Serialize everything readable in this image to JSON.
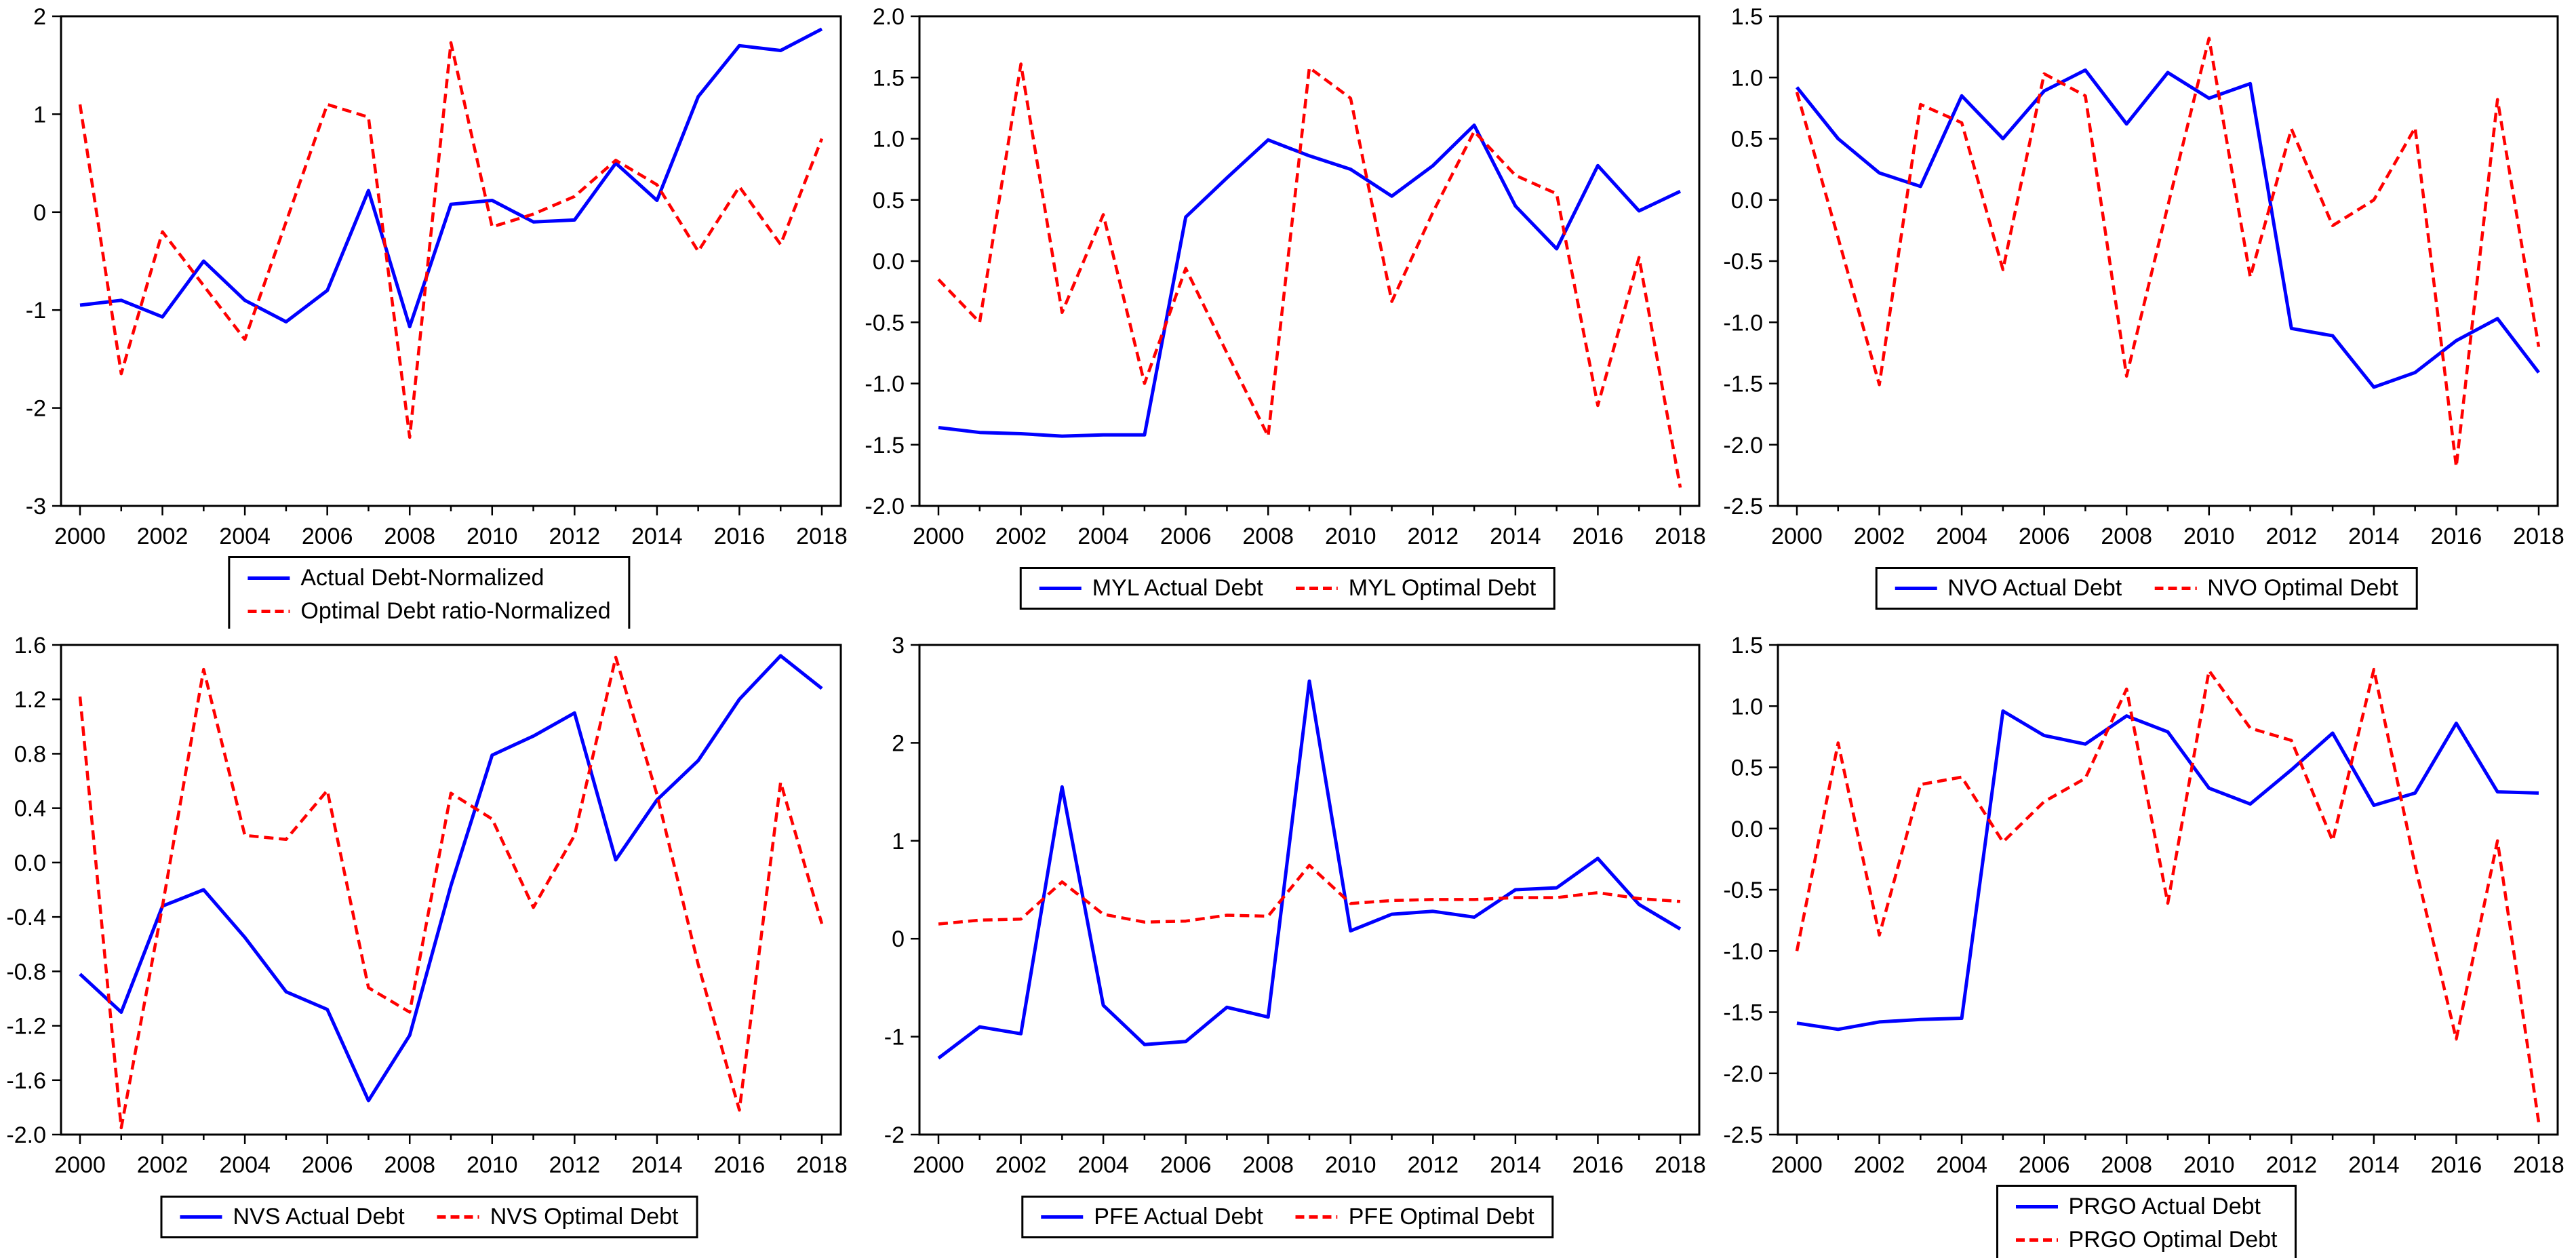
{
  "page": {
    "background": "#ffffff"
  },
  "colors": {
    "actual": "#0000ff",
    "optimal": "#ff0000",
    "axis": "#000000"
  },
  "chart_data": [
    {
      "id": "normalized-debt",
      "type": "line",
      "x": [
        2000,
        2001,
        2002,
        2003,
        2004,
        2005,
        2006,
        2007,
        2008,
        2009,
        2010,
        2011,
        2012,
        2013,
        2014,
        2015,
        2016,
        2017,
        2018
      ],
      "xticks": [
        2000,
        2002,
        2004,
        2006,
        2008,
        2010,
        2012,
        2014,
        2016,
        2018
      ],
      "ylim": [
        -3,
        2
      ],
      "yticks": [
        2,
        1,
        0,
        -1,
        -2,
        -3
      ],
      "ytick_format": "int",
      "grid": "off",
      "legend_layout": "stack",
      "legend_position": "bottom",
      "series": [
        {
          "name": "Actual Debt-Normalized",
          "color": "#0000ff",
          "style": "solid",
          "values": [
            -0.95,
            -0.9,
            -1.07,
            -0.5,
            -0.9,
            -1.12,
            -0.8,
            0.22,
            -1.17,
            0.08,
            0.12,
            -0.1,
            -0.08,
            0.5,
            0.12,
            1.18,
            1.7,
            1.65,
            1.87
          ]
        },
        {
          "name": "Optimal Debt ratio-Normalized",
          "color": "#ff0000",
          "style": "dashed",
          "values": [
            1.1,
            -1.65,
            -0.2,
            -0.75,
            -1.3,
            -0.1,
            1.1,
            0.97,
            -2.3,
            1.73,
            -0.15,
            -0.02,
            0.16,
            0.53,
            0.28,
            -0.4,
            0.26,
            -0.33,
            0.75
          ]
        }
      ]
    },
    {
      "id": "MYL",
      "type": "line",
      "x": [
        2000,
        2001,
        2002,
        2003,
        2004,
        2005,
        2006,
        2007,
        2008,
        2009,
        2010,
        2011,
        2012,
        2013,
        2014,
        2015,
        2016,
        2017,
        2018
      ],
      "xticks": [
        2000,
        2002,
        2004,
        2006,
        2008,
        2010,
        2012,
        2014,
        2016,
        2018
      ],
      "ylim": [
        -2,
        2
      ],
      "yticks": [
        2.0,
        1.5,
        1.0,
        0.5,
        0.0,
        -0.5,
        -1.0,
        -1.5,
        -2.0
      ],
      "ytick_format": "dec1",
      "grid": "off",
      "legend_layout": "row",
      "legend_position": "bottom",
      "series": [
        {
          "name": "MYL Actual Debt",
          "color": "#0000ff",
          "style": "solid",
          "values": [
            -1.36,
            -1.4,
            -1.41,
            -1.43,
            -1.42,
            -1.42,
            0.36,
            0.68,
            0.99,
            0.86,
            0.75,
            0.53,
            0.78,
            1.11,
            0.45,
            0.1,
            0.78,
            0.41,
            0.57
          ]
        },
        {
          "name": "MYL Optimal Debt",
          "color": "#ff0000",
          "style": "dashed",
          "values": [
            -0.15,
            -0.5,
            1.61,
            -0.42,
            0.38,
            -1.0,
            -0.06,
            -0.75,
            -1.43,
            1.58,
            1.33,
            -0.33,
            0.4,
            1.06,
            0.7,
            0.55,
            -1.18,
            0.03,
            -1.85
          ]
        }
      ]
    },
    {
      "id": "NVO",
      "type": "line",
      "x": [
        2000,
        2001,
        2002,
        2003,
        2004,
        2005,
        2006,
        2007,
        2008,
        2009,
        2010,
        2011,
        2012,
        2013,
        2014,
        2015,
        2016,
        2017,
        2018
      ],
      "xticks": [
        2000,
        2002,
        2004,
        2006,
        2008,
        2010,
        2012,
        2014,
        2016,
        2018
      ],
      "ylim": [
        -2.5,
        1.5
      ],
      "yticks": [
        1.5,
        1.0,
        0.5,
        0.0,
        -0.5,
        -1.0,
        -1.5,
        -2.0,
        -2.5
      ],
      "ytick_format": "dec1",
      "grid": "off",
      "legend_layout": "row",
      "legend_position": "bottom",
      "series": [
        {
          "name": "NVO Actual Debt",
          "color": "#0000ff",
          "style": "solid",
          "values": [
            0.92,
            0.5,
            0.22,
            0.11,
            0.85,
            0.5,
            0.89,
            1.06,
            0.62,
            1.04,
            0.83,
            0.95,
            -1.05,
            -1.11,
            -1.53,
            -1.41,
            -1.15,
            -0.97,
            -1.41
          ]
        },
        {
          "name": "NVO Optimal Debt",
          "color": "#ff0000",
          "style": "dashed",
          "values": [
            0.88,
            -0.31,
            -1.51,
            0.78,
            0.63,
            -0.57,
            1.03,
            0.85,
            -1.44,
            -0.05,
            1.32,
            -0.63,
            0.58,
            -0.21,
            0.0,
            0.59,
            -2.18,
            0.82,
            -1.2
          ]
        }
      ]
    },
    {
      "id": "NVS",
      "type": "line",
      "x": [
        2000,
        2001,
        2002,
        2003,
        2004,
        2005,
        2006,
        2007,
        2008,
        2009,
        2010,
        2011,
        2012,
        2013,
        2014,
        2015,
        2016,
        2017,
        2018
      ],
      "xticks": [
        2000,
        2002,
        2004,
        2006,
        2008,
        2010,
        2012,
        2014,
        2016,
        2018
      ],
      "ylim": [
        -2,
        1.6
      ],
      "yticks": [
        1.6,
        1.2,
        0.8,
        0.4,
        0.0,
        -0.4,
        -0.8,
        -1.2,
        -1.6,
        -2.0
      ],
      "ytick_format": "dec1",
      "grid": "off",
      "legend_layout": "row",
      "legend_position": "bottom",
      "series": [
        {
          "name": "NVS Actual Debt",
          "color": "#0000ff",
          "style": "solid",
          "values": [
            -0.82,
            -1.1,
            -0.32,
            -0.2,
            -0.55,
            -0.95,
            -1.08,
            -1.75,
            -1.27,
            -0.17,
            0.79,
            0.93,
            1.1,
            0.02,
            0.46,
            0.75,
            1.2,
            1.52,
            1.28
          ]
        },
        {
          "name": "NVS Optimal Debt",
          "color": "#ff0000",
          "style": "dashed",
          "values": [
            1.22,
            -1.95,
            -0.32,
            1.42,
            0.2,
            0.17,
            0.53,
            -0.92,
            -1.1,
            0.51,
            0.32,
            -0.33,
            0.2,
            1.51,
            0.5,
            -0.75,
            -1.82,
            0.59,
            -0.45
          ]
        }
      ]
    },
    {
      "id": "PFE",
      "type": "line",
      "x": [
        2000,
        2001,
        2002,
        2003,
        2004,
        2005,
        2006,
        2007,
        2008,
        2009,
        2010,
        2011,
        2012,
        2013,
        2014,
        2015,
        2016,
        2017,
        2018
      ],
      "xticks": [
        2000,
        2002,
        2004,
        2006,
        2008,
        2010,
        2012,
        2014,
        2016,
        2018
      ],
      "ylim": [
        -2,
        3
      ],
      "yticks": [
        3,
        2,
        1,
        0,
        -1,
        -2
      ],
      "ytick_format": "int",
      "grid": "off",
      "legend_layout": "row",
      "legend_position": "bottom",
      "series": [
        {
          "name": "PFE Actual Debt",
          "color": "#0000ff",
          "style": "solid",
          "values": [
            -1.22,
            -0.9,
            -0.97,
            1.55,
            -0.68,
            -1.08,
            -1.05,
            -0.7,
            -0.8,
            2.63,
            0.08,
            0.25,
            0.28,
            0.22,
            0.5,
            0.52,
            0.82,
            0.35,
            0.1
          ]
        },
        {
          "name": "PFE Optimal Debt",
          "color": "#ff0000",
          "style": "dashed",
          "values": [
            0.15,
            0.19,
            0.2,
            0.58,
            0.25,
            0.17,
            0.18,
            0.24,
            0.23,
            0.75,
            0.36,
            0.39,
            0.4,
            0.4,
            0.42,
            0.42,
            0.47,
            0.41,
            0.38
          ]
        }
      ]
    },
    {
      "id": "PRGO",
      "type": "line",
      "x": [
        2000,
        2001,
        2002,
        2003,
        2004,
        2005,
        2006,
        2007,
        2008,
        2009,
        2010,
        2011,
        2012,
        2013,
        2014,
        2015,
        2016,
        2017,
        2018
      ],
      "xticks": [
        2000,
        2002,
        2004,
        2006,
        2008,
        2010,
        2012,
        2014,
        2016,
        2018
      ],
      "ylim": [
        -2.5,
        1.5
      ],
      "yticks": [
        1.5,
        1.0,
        0.5,
        0.0,
        -0.5,
        -1.0,
        -1.5,
        -2.0,
        -2.5
      ],
      "ytick_format": "dec1",
      "grid": "off",
      "legend_layout": "stack",
      "legend_position": "bottom",
      "series": [
        {
          "name": "PRGO Actual Debt",
          "color": "#0000ff",
          "style": "solid",
          "values": [
            -1.59,
            -1.64,
            -1.58,
            -1.56,
            -1.55,
            0.96,
            0.76,
            0.69,
            0.92,
            0.79,
            0.33,
            0.2,
            0.48,
            0.78,
            0.19,
            0.29,
            0.86,
            0.3,
            0.29
          ]
        },
        {
          "name": "PRGO Optimal Debt",
          "color": "#ff0000",
          "style": "dashed",
          "values": [
            -1.0,
            0.7,
            -0.87,
            0.36,
            0.42,
            -0.11,
            0.22,
            0.41,
            1.14,
            -0.61,
            1.29,
            0.82,
            0.72,
            -0.1,
            1.3,
            -0.3,
            -1.72,
            -0.1,
            -2.4
          ]
        }
      ]
    }
  ]
}
